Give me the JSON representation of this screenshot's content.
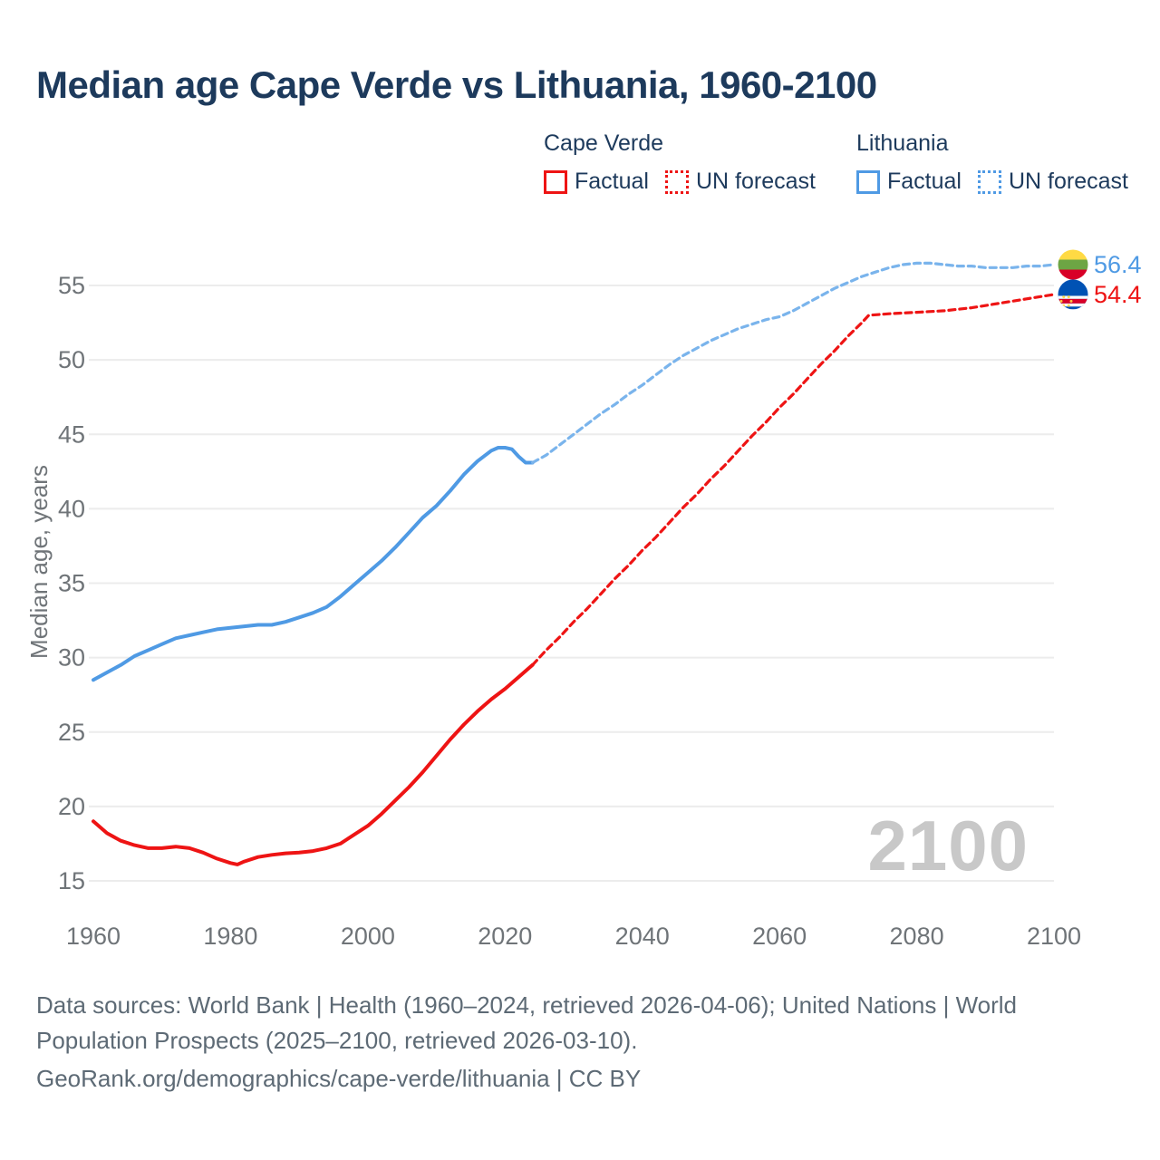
{
  "page": {
    "background": "#ffffff"
  },
  "header": {
    "title": "Median age Cape Verde vs Lithuania, 1960-2100",
    "title_color": "#1d3a5c"
  },
  "legend": {
    "groups": [
      {
        "name": "Cape Verde",
        "color": "#ee1414",
        "items": [
          {
            "label": "Factual",
            "style": "solid"
          },
          {
            "label": "UN forecast",
            "style": "dotted"
          }
        ]
      },
      {
        "name": "Lithuania",
        "color": "#4f9ae4",
        "items": [
          {
            "label": "Factual",
            "style": "solid"
          },
          {
            "label": "UN forecast",
            "style": "dotted"
          }
        ]
      }
    ]
  },
  "watermark": "2100",
  "footer": {
    "lines": [
      "Data sources: World Bank | Health (1960–2024, retrieved 2026-04-06); United Nations | World",
      "Population Prospects (2025–2100, retrieved 2026-03-10).",
      "GeoRank.org/demographics/cape-verde/lithuania | CC BY"
    ]
  },
  "chart_data": {
    "type": "line",
    "title": "Median age Cape Verde vs Lithuania, 1960-2100",
    "xlabel": "",
    "ylabel": "Median age, years",
    "xlim": [
      1960,
      2100
    ],
    "ylim": [
      13.5,
      58
    ],
    "grid": "horizontal",
    "grid_color": "#ececec",
    "tick_color": "#6f7478",
    "xticks": [
      1960,
      1980,
      2000,
      2020,
      2040,
      2060,
      2080,
      2100
    ],
    "yticks": [
      15,
      20,
      25,
      30,
      35,
      40,
      45,
      50,
      55
    ],
    "series": [
      {
        "name": "Lithuania — Factual",
        "color": "#4f9ae4",
        "style": "solid",
        "points": [
          [
            1960,
            28.5
          ],
          [
            1962,
            29.0
          ],
          [
            1964,
            29.5
          ],
          [
            1966,
            30.1
          ],
          [
            1968,
            30.5
          ],
          [
            1970,
            30.9
          ],
          [
            1972,
            31.3
          ],
          [
            1974,
            31.5
          ],
          [
            1976,
            31.7
          ],
          [
            1978,
            31.9
          ],
          [
            1980,
            32.0
          ],
          [
            1982,
            32.1
          ],
          [
            1984,
            32.2
          ],
          [
            1986,
            32.2
          ],
          [
            1988,
            32.4
          ],
          [
            1990,
            32.7
          ],
          [
            1992,
            33.0
          ],
          [
            1994,
            33.4
          ],
          [
            1996,
            34.1
          ],
          [
            1998,
            34.9
          ],
          [
            2000,
            35.7
          ],
          [
            2002,
            36.5
          ],
          [
            2004,
            37.4
          ],
          [
            2006,
            38.4
          ],
          [
            2008,
            39.4
          ],
          [
            2010,
            40.2
          ],
          [
            2012,
            41.2
          ],
          [
            2014,
            42.3
          ],
          [
            2016,
            43.2
          ],
          [
            2018,
            43.9
          ],
          [
            2019,
            44.1
          ],
          [
            2020,
            44.1
          ],
          [
            2021,
            44.0
          ],
          [
            2022,
            43.5
          ],
          [
            2023,
            43.1
          ],
          [
            2024,
            43.1
          ]
        ]
      },
      {
        "name": "Lithuania — UN forecast",
        "color": "#7ab4ec",
        "style": "dashed",
        "points": [
          [
            2024,
            43.1
          ],
          [
            2026,
            43.6
          ],
          [
            2028,
            44.3
          ],
          [
            2030,
            45.0
          ],
          [
            2032,
            45.7
          ],
          [
            2034,
            46.4
          ],
          [
            2036,
            47.0
          ],
          [
            2038,
            47.7
          ],
          [
            2040,
            48.3
          ],
          [
            2042,
            49.0
          ],
          [
            2044,
            49.7
          ],
          [
            2046,
            50.3
          ],
          [
            2048,
            50.8
          ],
          [
            2050,
            51.3
          ],
          [
            2052,
            51.7
          ],
          [
            2054,
            52.1
          ],
          [
            2056,
            52.4
          ],
          [
            2058,
            52.7
          ],
          [
            2060,
            52.9
          ],
          [
            2062,
            53.3
          ],
          [
            2064,
            53.8
          ],
          [
            2066,
            54.3
          ],
          [
            2068,
            54.8
          ],
          [
            2070,
            55.2
          ],
          [
            2072,
            55.6
          ],
          [
            2074,
            55.9
          ],
          [
            2076,
            56.2
          ],
          [
            2078,
            56.4
          ],
          [
            2080,
            56.5
          ],
          [
            2082,
            56.5
          ],
          [
            2084,
            56.4
          ],
          [
            2086,
            56.3
          ],
          [
            2088,
            56.3
          ],
          [
            2090,
            56.2
          ],
          [
            2092,
            56.2
          ],
          [
            2094,
            56.2
          ],
          [
            2096,
            56.3
          ],
          [
            2098,
            56.3
          ],
          [
            2100,
            56.4
          ]
        ]
      },
      {
        "name": "Cape Verde — Factual",
        "color": "#ee1414",
        "style": "solid",
        "points": [
          [
            1960,
            19.0
          ],
          [
            1962,
            18.2
          ],
          [
            1964,
            17.7
          ],
          [
            1966,
            17.4
          ],
          [
            1968,
            17.2
          ],
          [
            1970,
            17.2
          ],
          [
            1972,
            17.3
          ],
          [
            1974,
            17.2
          ],
          [
            1976,
            16.9
          ],
          [
            1978,
            16.5
          ],
          [
            1980,
            16.2
          ],
          [
            1981,
            16.1
          ],
          [
            1982,
            16.3
          ],
          [
            1984,
            16.6
          ],
          [
            1986,
            16.75
          ],
          [
            1988,
            16.85
          ],
          [
            1990,
            16.9
          ],
          [
            1992,
            17.0
          ],
          [
            1994,
            17.2
          ],
          [
            1996,
            17.5
          ],
          [
            1998,
            18.1
          ],
          [
            2000,
            18.7
          ],
          [
            2002,
            19.5
          ],
          [
            2004,
            20.4
          ],
          [
            2006,
            21.3
          ],
          [
            2008,
            22.3
          ],
          [
            2010,
            23.4
          ],
          [
            2012,
            24.5
          ],
          [
            2014,
            25.5
          ],
          [
            2016,
            26.4
          ],
          [
            2018,
            27.2
          ],
          [
            2020,
            27.9
          ],
          [
            2022,
            28.7
          ],
          [
            2024,
            29.5
          ]
        ]
      },
      {
        "name": "Cape Verde — UN forecast",
        "color": "#ee1414",
        "style": "dashed",
        "points": [
          [
            2024,
            29.5
          ],
          [
            2026,
            30.5
          ],
          [
            2028,
            31.4
          ],
          [
            2030,
            32.4
          ],
          [
            2032,
            33.3
          ],
          [
            2034,
            34.3
          ],
          [
            2036,
            35.3
          ],
          [
            2038,
            36.2
          ],
          [
            2040,
            37.2
          ],
          [
            2042,
            38.1
          ],
          [
            2044,
            39.1
          ],
          [
            2046,
            40.1
          ],
          [
            2048,
            41.0
          ],
          [
            2050,
            42.0
          ],
          [
            2052,
            42.9
          ],
          [
            2054,
            43.9
          ],
          [
            2056,
            44.9
          ],
          [
            2058,
            45.8
          ],
          [
            2060,
            46.8
          ],
          [
            2062,
            47.7
          ],
          [
            2064,
            48.7
          ],
          [
            2066,
            49.7
          ],
          [
            2068,
            50.6
          ],
          [
            2070,
            51.6
          ],
          [
            2072,
            52.5
          ],
          [
            2073,
            53.0
          ],
          [
            2076,
            53.1
          ],
          [
            2080,
            53.2
          ],
          [
            2084,
            53.3
          ],
          [
            2088,
            53.5
          ],
          [
            2092,
            53.8
          ],
          [
            2096,
            54.1
          ],
          [
            2100,
            54.4
          ]
        ]
      }
    ],
    "end_labels": [
      {
        "series": "Lithuania",
        "value": "56.4",
        "color": "#4f9ae4",
        "flag": "lithuania-flag-icon"
      },
      {
        "series": "Cape Verde",
        "value": "54.4",
        "color": "#ee1414",
        "flag": "cape-verde-flag-icon"
      }
    ],
    "flags": {
      "lithuania": {
        "yellow": "#FFDA44",
        "green": "#6DA544",
        "red": "#D80027"
      },
      "cape_verde": {
        "blue": "#0052B4",
        "stripe_red": "#D80027",
        "stripe_white": "#FFFFFF",
        "star_yellow": "#FFDA44"
      }
    },
    "legend_position": "top-right"
  }
}
